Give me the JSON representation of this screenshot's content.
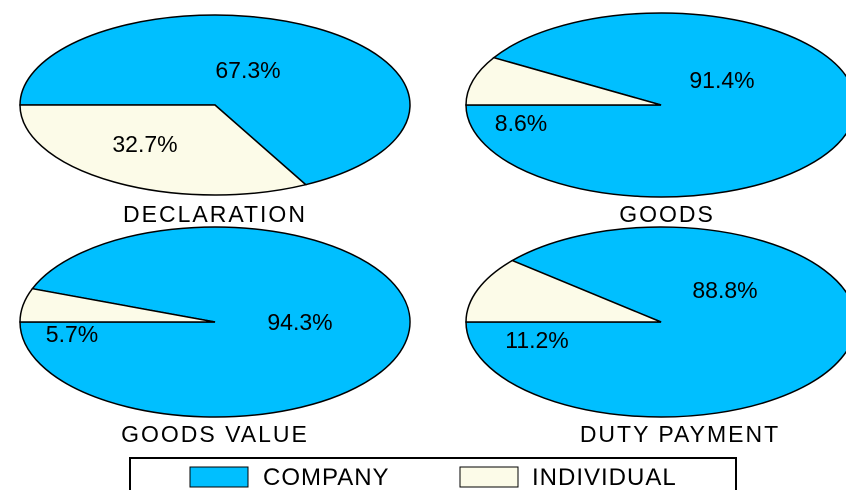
{
  "colors": {
    "company": "#00BFFF",
    "individual": "#FCFBE8",
    "outline": "#000000"
  },
  "chart_data": [
    {
      "type": "pie",
      "title": "DECLARATION",
      "series": [
        {
          "name": "COMPANY",
          "value": 67.3,
          "label": "67.3%"
        },
        {
          "name": "INDIVIDUAL",
          "value": 32.7,
          "label": "32.7%"
        }
      ]
    },
    {
      "type": "pie",
      "title": "GOODS",
      "series": [
        {
          "name": "COMPANY",
          "value": 91.4,
          "label": "91.4%"
        },
        {
          "name": "INDIVIDUAL",
          "value": 8.6,
          "label": "8.6%"
        }
      ]
    },
    {
      "type": "pie",
      "title": "GOODS VALUE",
      "series": [
        {
          "name": "COMPANY",
          "value": 94.3,
          "label": "94.3%"
        },
        {
          "name": "INDIVIDUAL",
          "value": 5.7,
          "label": "5.7%"
        }
      ]
    },
    {
      "type": "pie",
      "title": "DUTY PAYMENT",
      "series": [
        {
          "name": "COMPANY",
          "value": 88.8,
          "label": "88.8%"
        },
        {
          "name": "INDIVIDUAL",
          "value": 11.2,
          "label": "11.2%"
        }
      ]
    }
  ],
  "legend": [
    {
      "label": "COMPANY",
      "color_key": "company"
    },
    {
      "label": "INDIVIDUAL",
      "color_key": "individual"
    }
  ]
}
